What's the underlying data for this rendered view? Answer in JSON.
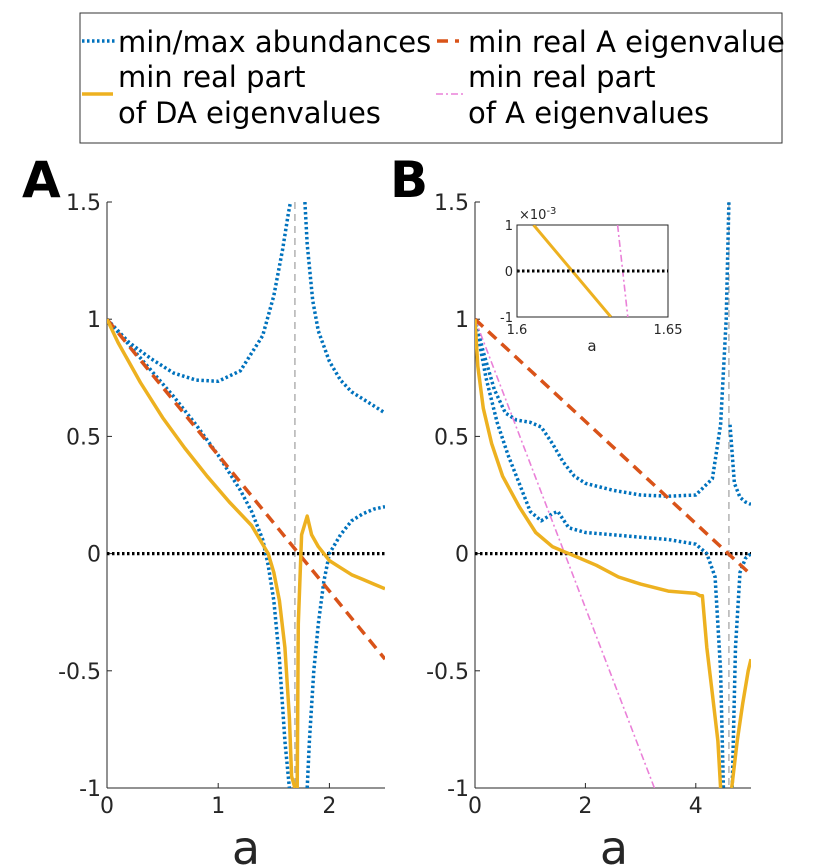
{
  "legend": {
    "items": [
      {
        "label_lines": [
          "min/max abundances"
        ],
        "style": "dotted",
        "color": "#0072bd"
      },
      {
        "label_lines": [
          "min real A eigenvalue"
        ],
        "style": "dashed",
        "color": "#d95319"
      },
      {
        "label_lines": [
          "min real part",
          "of DA eigenvalues"
        ],
        "style": "solid",
        "color": "#edb120"
      },
      {
        "label_lines": [
          "min real part",
          "of A eigenvalues"
        ],
        "style": "dashdot",
        "color": "#ea80d8"
      }
    ]
  },
  "chart_data": [
    {
      "panel_label": "A",
      "type": "line",
      "xlabel": "a",
      "ylabel": "",
      "xlim": [
        0,
        2.5
      ],
      "ylim": [
        -1,
        1.5
      ],
      "xticks": [
        "0",
        "1",
        "2"
      ],
      "yticks": [
        "-1",
        "-0.5",
        "0",
        "0.5",
        "1",
        "1.5"
      ],
      "vertical_marker_x": 1.69,
      "series": [
        {
          "kind": "abundance",
          "style": "dotted",
          "color": "#0072bd",
          "x": [
            0,
            0.2,
            0.4,
            0.6,
            0.8,
            1.0,
            1.2,
            1.4,
            1.5,
            1.58,
            1.63,
            1.65
          ],
          "y": [
            1,
            0.9,
            0.83,
            0.77,
            0.74,
            0.735,
            0.78,
            0.93,
            1.1,
            1.3,
            1.45,
            1.5
          ]
        },
        {
          "kind": "abundance",
          "style": "dotted",
          "color": "#0072bd",
          "x": [
            1.78,
            1.8,
            1.85,
            1.9,
            2.0,
            2.1,
            2.2,
            2.3,
            2.4,
            2.5
          ],
          "y": [
            1.5,
            1.32,
            1.08,
            0.95,
            0.82,
            0.74,
            0.69,
            0.66,
            0.63,
            0.6
          ]
        },
        {
          "kind": "abundance",
          "style": "dotted",
          "color": "#0072bd",
          "x": [
            0,
            0.2,
            0.4,
            0.6,
            0.8,
            1.0,
            1.2,
            1.3,
            1.4,
            1.45,
            1.5,
            1.55,
            1.6,
            1.64
          ],
          "y": [
            1,
            0.89,
            0.78,
            0.67,
            0.55,
            0.42,
            0.27,
            0.18,
            0.06,
            -0.05,
            -0.2,
            -0.45,
            -0.8,
            -1
          ]
        },
        {
          "kind": "abundance",
          "style": "dotted",
          "color": "#0072bd",
          "x": [
            1.8,
            1.82,
            1.86,
            1.9,
            1.95,
            2.0,
            2.1,
            2.2,
            2.3,
            2.4,
            2.5
          ],
          "y": [
            -1,
            -0.8,
            -0.5,
            -0.3,
            -0.12,
            0.0,
            0.08,
            0.14,
            0.17,
            0.19,
            0.2
          ]
        },
        {
          "kind": "DA_min",
          "style": "solid",
          "color": "#edb120",
          "x": [
            0,
            0.1,
            0.3,
            0.5,
            0.7,
            0.9,
            1.1,
            1.3,
            1.45,
            1.5,
            1.55,
            1.6,
            1.64,
            1.66,
            1.69
          ],
          "y": [
            1,
            0.9,
            0.73,
            0.58,
            0.45,
            0.33,
            0.22,
            0.12,
            0.0,
            -0.08,
            -0.2,
            -0.4,
            -0.7,
            -0.95,
            -1
          ]
        },
        {
          "kind": "DA_min",
          "style": "solid",
          "color": "#edb120",
          "x": [
            1.71,
            1.72,
            1.75,
            1.8,
            1.84,
            1.9,
            2.0,
            2.1,
            2.2,
            2.3,
            2.4,
            2.5
          ],
          "y": [
            -1,
            -0.3,
            0.08,
            0.16,
            0.08,
            0.03,
            -0.03,
            -0.06,
            -0.09,
            -0.11,
            -0.13,
            -0.15
          ]
        },
        {
          "kind": "A_min",
          "style": "dashed",
          "color": "#d95319",
          "x": [
            0,
            2.5
          ],
          "y": [
            1,
            -0.45
          ]
        }
      ]
    },
    {
      "panel_label": "B",
      "type": "line",
      "xlabel": "a",
      "ylabel": "",
      "xlim": [
        0,
        5
      ],
      "ylim": [
        -1,
        1.5
      ],
      "xticks": [
        "0",
        "2",
        "4"
      ],
      "yticks": [
        "-1",
        "-0.5",
        "0",
        "0.5",
        "1",
        "1.5"
      ],
      "vertical_marker_x": 4.6,
      "series": [
        {
          "kind": "abundance",
          "style": "dotted",
          "color": "#0072bd",
          "x": [
            0,
            0.15,
            0.35,
            0.55,
            0.75,
            1.0,
            1.2,
            1.4,
            1.6,
            1.8,
            2.0,
            2.5,
            3.0,
            3.5,
            4.0,
            4.3,
            4.45,
            4.55,
            4.6
          ],
          "y": [
            1,
            0.86,
            0.7,
            0.6,
            0.57,
            0.56,
            0.54,
            0.47,
            0.39,
            0.33,
            0.3,
            0.27,
            0.25,
            0.245,
            0.25,
            0.32,
            0.55,
            1.0,
            1.5
          ]
        },
        {
          "kind": "abundance",
          "style": "dotted",
          "color": "#0072bd",
          "x": [
            4.62,
            4.7,
            4.8,
            4.9,
            5.0
          ],
          "y": [
            0.55,
            0.3,
            0.24,
            0.22,
            0.21
          ]
        },
        {
          "kind": "abundance",
          "style": "dotted",
          "color": "#0072bd",
          "x": [
            0,
            0.2,
            0.4,
            0.6,
            0.8,
            1.0,
            1.2,
            1.4,
            1.5,
            1.7,
            2.0,
            2.5,
            3.0,
            3.5,
            4.0,
            4.2,
            4.35,
            4.45,
            4.5
          ],
          "y": [
            1,
            0.75,
            0.56,
            0.42,
            0.3,
            0.18,
            0.14,
            0.17,
            0.18,
            0.11,
            0.09,
            0.08,
            0.07,
            0.06,
            0.04,
            0.0,
            -0.1,
            -0.5,
            -1
          ]
        },
        {
          "kind": "abundance",
          "style": "dotted",
          "color": "#0072bd",
          "x": [
            4.66,
            4.72,
            4.8,
            4.9,
            5.0
          ],
          "y": [
            -1,
            -0.4,
            -0.08,
            -0.02,
            0.0
          ]
        },
        {
          "kind": "DA_min",
          "style": "solid",
          "color": "#edb120",
          "x": [
            0,
            0.05,
            0.15,
            0.3,
            0.5,
            0.8,
            1.1,
            1.4,
            1.6,
            1.8,
            2.2,
            2.6,
            3.0,
            3.5,
            4.0,
            4.08,
            4.12,
            4.2,
            4.3,
            4.4,
            4.45
          ],
          "y": [
            1,
            0.8,
            0.62,
            0.47,
            0.33,
            0.2,
            0.09,
            0.03,
            0.01,
            -0.01,
            -0.05,
            -0.1,
            -0.13,
            -0.16,
            -0.17,
            -0.18,
            -0.18,
            -0.4,
            -0.6,
            -0.8,
            -1
          ]
        },
        {
          "kind": "DA_min",
          "style": "solid",
          "color": "#edb120",
          "x": [
            4.65,
            4.75,
            4.85,
            4.95,
            5.0
          ],
          "y": [
            -1,
            -0.8,
            -0.64,
            -0.5,
            -0.45
          ]
        },
        {
          "kind": "A_min",
          "style": "dashed",
          "color": "#d95319",
          "x": [
            0,
            5
          ],
          "y": [
            1,
            -0.09
          ]
        },
        {
          "kind": "A_part",
          "style": "dashdot",
          "color": "#ea80d8",
          "x": [
            0,
            3.25
          ],
          "y": [
            1,
            -1
          ]
        }
      ],
      "inset": {
        "xlim": [
          1.6,
          1.65
        ],
        "ylim": [
          -1,
          1
        ],
        "xticks": [
          "1.6",
          "1.65"
        ],
        "yticks": [
          "-1",
          "0",
          "1"
        ],
        "xlabel": "a",
        "exponent_label": "×10",
        "exponent_power": "-3",
        "series": [
          {
            "kind": "DA_min",
            "style": "solid",
            "color": "#edb120",
            "x": [
              1.6055,
              1.6311
            ],
            "y": [
              1,
              -1
            ]
          },
          {
            "kind": "A_part",
            "style": "dashdot",
            "color": "#ea80d8",
            "x": [
              1.6333,
              1.6367
            ],
            "y": [
              1,
              -1
            ]
          },
          {
            "kind": "zero",
            "style": "dotted",
            "color": "#000000",
            "x": [
              1.6,
              1.65
            ],
            "y": [
              0,
              0
            ]
          }
        ]
      }
    }
  ]
}
